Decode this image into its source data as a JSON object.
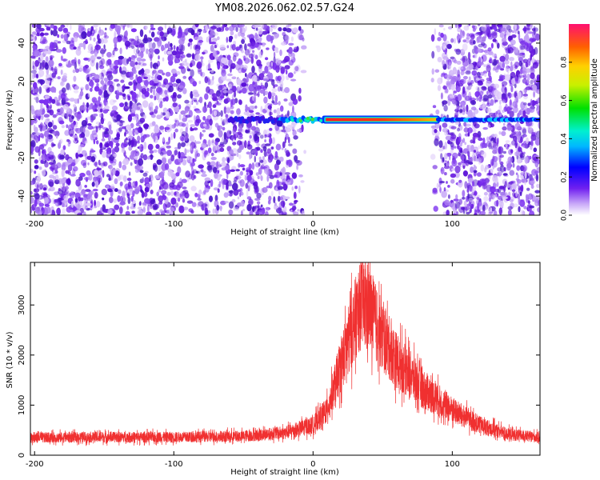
{
  "title": "YM08.2026.062.02.57.G24",
  "colors": {
    "snr_line": "#f03030",
    "scatter_purple": "#6a1ee0",
    "frame": "#000000"
  },
  "chart_data": [
    {
      "id": "spectrogram",
      "type": "heatmap",
      "title": "YM08.2026.062.02.57.G24",
      "xlabel": "Height of straight line (km)",
      "ylabel": "Frequency (Hz)",
      "xlim": [
        -203,
        163
      ],
      "ylim": [
        -50,
        50
      ],
      "xticks": [
        -200,
        -100,
        0,
        100
      ],
      "yticks": [
        -40,
        -20,
        0,
        20,
        40
      ],
      "colorbar": {
        "label": "Normalized spectral amplitude",
        "range": [
          0,
          1
        ],
        "ticks": [
          "0.0",
          "0.2",
          "0.4",
          "0.6",
          "0.8"
        ],
        "tick_values": [
          0,
          0.2,
          0.4,
          0.6,
          0.8
        ]
      },
      "features": {
        "noise_regions_km": [
          [
            -203,
            -5
          ],
          [
            85,
            163
          ]
        ],
        "clear_region_km": [
          -5,
          85
        ],
        "carrier_line": {
          "freq_hz": 0,
          "segments": [
            {
              "x0": -60,
              "x1": -20,
              "amp": 0.1
            },
            {
              "x0": -20,
              "x1": 8,
              "amp": 0.3
            },
            {
              "x0": 8,
              "x1": 90,
              "amp": 0.9
            },
            {
              "x0": 90,
              "x1": 163,
              "amp": 0.2
            }
          ]
        }
      }
    },
    {
      "id": "snr",
      "type": "line",
      "xlabel": "Height of straight line (km)",
      "ylabel": "SNR (10 * v/v)",
      "xlim": [
        -203,
        163
      ],
      "ylim": [
        0,
        3850
      ],
      "xticks": [
        -200,
        -100,
        0,
        100
      ],
      "yticks": [
        0,
        1000,
        2000,
        3000
      ],
      "series": [
        {
          "name": "SNR",
          "color": "#f03030",
          "x": [
            -203,
            -150,
            -100,
            -50,
            -20,
            0,
            10,
            20,
            30,
            35,
            40,
            50,
            60,
            80,
            100,
            120,
            140,
            163
          ],
          "y": [
            350,
            360,
            360,
            380,
            450,
            600,
            900,
            1800,
            2700,
            3050,
            2950,
            2350,
            1900,
            1300,
            900,
            600,
            420,
            350
          ],
          "noise_amplitude": 0.3
        }
      ]
    }
  ]
}
